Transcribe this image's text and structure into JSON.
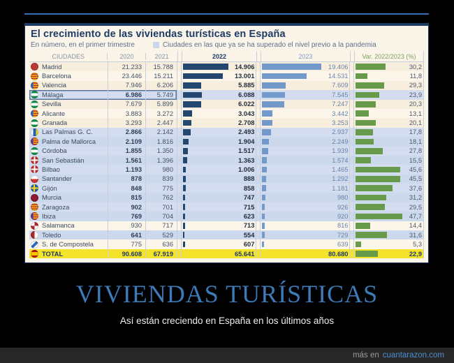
{
  "poster": {
    "title": "VIVIENDAS TURÍSTICAS",
    "subtitle": "Así están creciendo en España en los últimos años",
    "watermark_prefix": "más en",
    "watermark_site": "cuantarazon.com"
  },
  "chart_data": {
    "type": "bar",
    "title": "El crecimiento de las viviendas turísticas en España",
    "subtitle": "En número, en el primer trimestre",
    "legend_label": "Ciudades en las que ya se ha superado el nivel previo a la pandemia",
    "legend_swatch_color": "#c9d6ec",
    "columns": [
      "CIUDADES",
      "2020",
      "2021",
      "2022",
      "2023",
      "Var. 2022/2023 (%)"
    ],
    "bar_colors": {
      "y2022": "#24476f",
      "y2023": "#7399cb",
      "variation": "#689a4b"
    },
    "highlight_row_color": "#ccd8ec",
    "total_row_color": "#f3e32b",
    "scale_max": {
      "y2022": 14906,
      "y2023": 19406,
      "variation": 47.7
    },
    "rows": [
      {
        "city": "Madrid",
        "flag": "madrid",
        "y2020": "21.233",
        "y2021": "15.788",
        "y2022": "14.906",
        "y2023": "19.406",
        "var": "30,2",
        "n2022": 14906,
        "n2023": 19406,
        "nvar": 30.2,
        "surpassed": false,
        "marked": false
      },
      {
        "city": "Barcelona",
        "flag": "senyera",
        "y2020": "23.446",
        "y2021": "15.211",
        "y2022": "13.001",
        "y2023": "14.531",
        "var": "11,8",
        "n2022": 13001,
        "n2023": 14531,
        "nvar": 11.8,
        "surpassed": false,
        "marked": false
      },
      {
        "city": "Valencia",
        "flag": "senyera-blue",
        "y2020": "7.946",
        "y2021": "6.206",
        "y2022": "5.885",
        "y2023": "7.609",
        "var": "29,3",
        "n2022": 5885,
        "n2023": 7609,
        "nvar": 29.3,
        "surpassed": false,
        "marked": false
      },
      {
        "city": "Málaga",
        "flag": "andalucia",
        "y2020": "6.986",
        "y2021": "5.749",
        "y2022": "6.088",
        "y2023": "7.545",
        "var": "23,9",
        "n2022": 6088,
        "n2023": 7545,
        "nvar": 23.9,
        "surpassed": true,
        "marked": true
      },
      {
        "city": "Sevilla",
        "flag": "andalucia",
        "y2020": "7.679",
        "y2021": "5.899",
        "y2022": "6.022",
        "y2023": "7.247",
        "var": "20,3",
        "n2022": 6022,
        "n2023": 7247,
        "nvar": 20.3,
        "surpassed": false,
        "marked": false
      },
      {
        "city": "Alicante",
        "flag": "senyera-blue",
        "y2020": "3.883",
        "y2021": "3.272",
        "y2022": "3.043",
        "y2023": "3.442",
        "var": "13,1",
        "n2022": 3043,
        "n2023": 3442,
        "nvar": 13.1,
        "surpassed": false,
        "marked": false
      },
      {
        "city": "Granada",
        "flag": "andalucia",
        "y2020": "3.293",
        "y2021": "2.447",
        "y2022": "2.708",
        "y2023": "3.253",
        "var": "20,1",
        "n2022": 2708,
        "n2023": 3253,
        "nvar": 20.1,
        "surpassed": false,
        "marked": false
      },
      {
        "city": "Las Palmas G. C.",
        "flag": "canarias",
        "y2020": "2.866",
        "y2021": "2.142",
        "y2022": "2.493",
        "y2023": "2.937",
        "var": "17,8",
        "n2022": 2493,
        "n2023": 2937,
        "nvar": 17.8,
        "surpassed": true,
        "marked": false
      },
      {
        "city": "Palma de Mallorca",
        "flag": "balears",
        "y2020": "2.109",
        "y2021": "1.816",
        "y2022": "1.904",
        "y2023": "2.249",
        "var": "18,1",
        "n2022": 1904,
        "n2023": 2249,
        "nvar": 18.1,
        "surpassed": true,
        "marked": false
      },
      {
        "city": "Córdoba",
        "flag": "andalucia",
        "y2020": "1.855",
        "y2021": "1.350",
        "y2022": "1.517",
        "y2023": "1.939",
        "var": "27,8",
        "n2022": 1517,
        "n2023": 1939,
        "nvar": 27.8,
        "surpassed": true,
        "marked": false
      },
      {
        "city": "San Sebastián",
        "flag": "ikurrina",
        "y2020": "1.561",
        "y2021": "1.396",
        "y2022": "1.363",
        "y2023": "1.574",
        "var": "15,5",
        "n2022": 1363,
        "n2023": 1574,
        "nvar": 15.5,
        "surpassed": true,
        "marked": false
      },
      {
        "city": "Bilbao",
        "flag": "ikurrina",
        "y2020": "1.193",
        "y2021": "980",
        "y2022": "1.006",
        "y2023": "1.465",
        "var": "45,6",
        "n2022": 1006,
        "n2023": 1465,
        "nvar": 45.6,
        "surpassed": true,
        "marked": false
      },
      {
        "city": "Santander",
        "flag": "cantabria",
        "y2020": "878",
        "y2021": "839",
        "y2022": "888",
        "y2023": "1.292",
        "var": "45,5",
        "n2022": 888,
        "n2023": 1292,
        "nvar": 45.5,
        "surpassed": true,
        "marked": false
      },
      {
        "city": "Gijón",
        "flag": "asturias",
        "y2020": "848",
        "y2021": "775",
        "y2022": "858",
        "y2023": "1.181",
        "var": "37,6",
        "n2022": 858,
        "n2023": 1181,
        "nvar": 37.6,
        "surpassed": true,
        "marked": false
      },
      {
        "city": "Murcia",
        "flag": "murcia",
        "y2020": "815",
        "y2021": "762",
        "y2022": "747",
        "y2023": "980",
        "var": "31,2",
        "n2022": 747,
        "n2023": 980,
        "nvar": 31.2,
        "surpassed": true,
        "marked": false
      },
      {
        "city": "Zaragoza",
        "flag": "senyera",
        "y2020": "902",
        "y2021": "701",
        "y2022": "715",
        "y2023": "926",
        "var": "29,5",
        "n2022": 715,
        "n2023": 926,
        "nvar": 29.5,
        "surpassed": true,
        "marked": false
      },
      {
        "city": "Ibiza",
        "flag": "balears",
        "y2020": "769",
        "y2021": "704",
        "y2022": "623",
        "y2023": "920",
        "var": "47,7",
        "n2022": 623,
        "n2023": 920,
        "nvar": 47.7,
        "surpassed": true,
        "marked": false
      },
      {
        "city": "Salamanca",
        "flag": "castilla",
        "y2020": "930",
        "y2021": "717",
        "y2022": "713",
        "y2023": "816",
        "var": "14,4",
        "n2022": 713,
        "n2023": 816,
        "nvar": 14.4,
        "surpassed": false,
        "marked": false
      },
      {
        "city": "Toledo",
        "flag": "toledo",
        "y2020": "641",
        "y2021": "529",
        "y2022": "554",
        "y2023": "729",
        "var": "31,6",
        "n2022": 554,
        "n2023": 729,
        "nvar": 31.6,
        "surpassed": true,
        "marked": false
      },
      {
        "city": "S. de Compostela",
        "flag": "compostela",
        "y2020": "775",
        "y2021": "636",
        "y2022": "607",
        "y2023": "639",
        "var": "5,3",
        "n2022": 607,
        "n2023": 639,
        "nvar": 5.3,
        "surpassed": false,
        "marked": false
      }
    ],
    "total": {
      "city": "TOTAL",
      "flag": "spain",
      "y2020": "90.608",
      "y2021": "67.919",
      "y2022": "65.641",
      "y2023": "80.680",
      "var": "22,9",
      "nvar": 22.9
    }
  }
}
